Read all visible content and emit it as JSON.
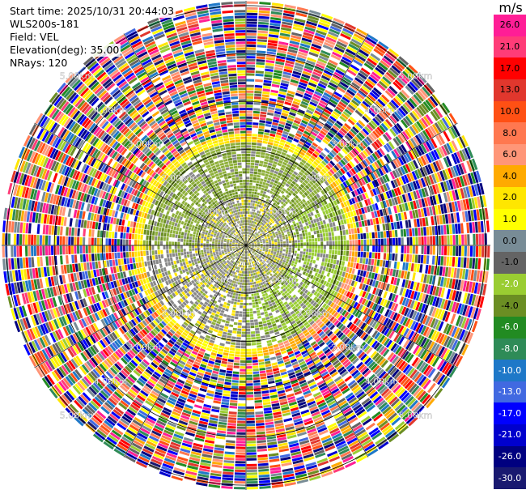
{
  "header": {
    "start_time": "Start time: 2025/10/31 20:44:03",
    "instrument": "WLS200s-181",
    "field": "Field: VEL",
    "elevation": "Elevation(deg): 35.00",
    "nrays": "NRays: 120"
  },
  "colorbar": {
    "unit": "m/s",
    "ticks": [
      "26.0",
      "21.0",
      "17.0",
      "13.0",
      "10.0",
      "8.0",
      "6.0",
      "4.0",
      "2.0",
      "1.0",
      "0.0",
      "-1.0",
      "-2.0",
      "-4.0",
      "-6.0",
      "-8.0",
      "-10.0",
      "-13.0",
      "-17.0",
      "-21.0",
      "-26.0",
      "-30.0"
    ],
    "colors": [
      "#ff1e96",
      "#ff3c78",
      "#ff0000",
      "#e1372d",
      "#ff5014",
      "#ff7850",
      "#ff9678",
      "#ffaa00",
      "#ffe600",
      "#ffff00",
      "#788c96",
      "#646464",
      "#9acd32",
      "#6b8e23",
      "#228b22",
      "#2e8b57",
      "#1e78c8",
      "#4169e1",
      "#0000ff",
      "#0000cd",
      "#000080",
      "#191970"
    ]
  },
  "chart_data": {
    "type": "ppi",
    "field": "VEL",
    "units": "m/s",
    "n_rays": 120,
    "elevation_deg": 35.0,
    "range_rings_km": [
      1.0,
      2.0,
      3.0,
      4.0,
      5.0
    ],
    "range_ring_labels": [
      "1.00km",
      "2.00km",
      "3.00km",
      "4.00km",
      "5.00km"
    ],
    "max_range_km": 5.1,
    "spoke_interval_deg": 30,
    "gate_spacing_km": 0.06,
    "sectors": [
      {
        "name": "inner",
        "range_km": [
          0.0,
          1.05
        ],
        "classes": [
          "gray",
          "lightgray",
          "yellowgreen",
          "olive",
          "yellow"
        ]
      },
      {
        "name": "ring",
        "range_km": [
          1.05,
          2.15
        ],
        "classes": [
          "yellowgreen",
          "olive",
          "gray",
          "green"
        ]
      },
      {
        "name": "edge",
        "range_km": [
          2.15,
          2.35
        ],
        "classes": [
          "yellow",
          "orange",
          "gold"
        ]
      },
      {
        "name": "outer",
        "range_km": [
          2.35,
          5.1
        ],
        "classes": [
          "noise"
        ]
      }
    ],
    "colorbar_range": [
      -30.0,
      26.0
    ]
  }
}
